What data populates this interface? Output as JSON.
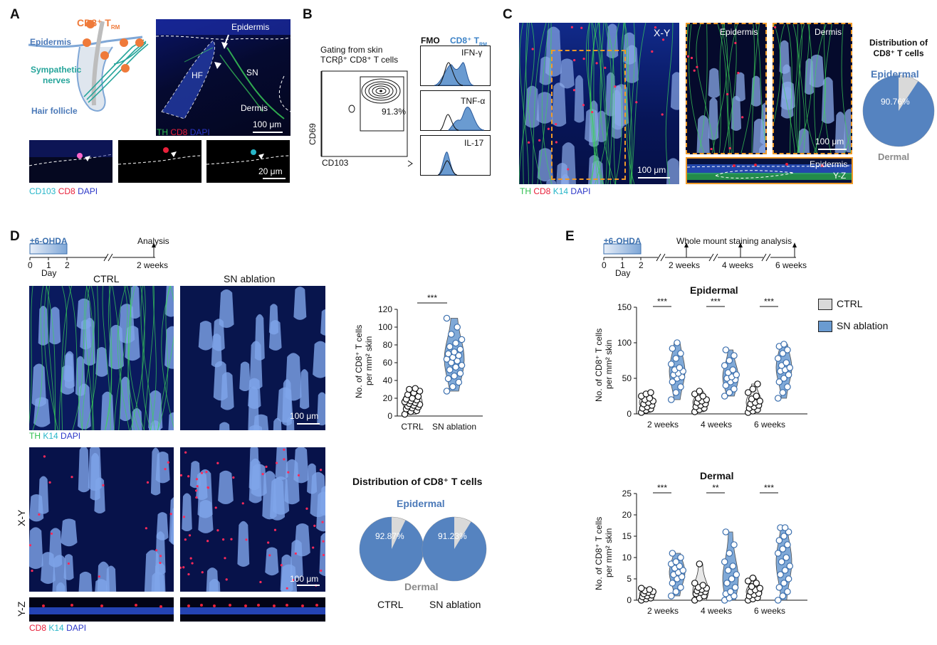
{
  "panels": {
    "A": "A",
    "B": "B",
    "C": "C",
    "D": "D",
    "E": "E"
  },
  "colors": {
    "sn_blue": "#6a9bd1",
    "ctrl_white": "#ffffff",
    "pie_blue": "#5583c0",
    "pie_grey": "#d9d9d9",
    "label_blue": "#4b79b8",
    "teal": "#27a59b",
    "orange": "#ef7a3a"
  },
  "panel_a": {
    "cd8_trm": "CD8⁺ T",
    "cd8_trm_sub": "RM",
    "epidermis": "Epidermis",
    "sympathetic": "Sympathetic",
    "nerves": "nerves",
    "hair_follicle": "Hair follicle",
    "img_epidermis": "Epidermis",
    "img_hf": "HF",
    "img_sn": "SN",
    "img_dermis": "Dermis",
    "scale_100": "100 μm",
    "stain_th": "TH",
    "stain_cd8": "CD8",
    "stain_dapi": "DAPI",
    "scale_20": "20 μm",
    "stain_cd103": "CD103"
  },
  "panel_b": {
    "gating_line1": "Gating from skin",
    "gating_line2": "TCRβ⁺ CD8⁺ T cells",
    "ylabel": "CD69",
    "xlabel": "CD103",
    "gate_pct": "91.3%",
    "fmo": "FMO",
    "cd8_trm": "CD8⁺ T",
    "cd8_trm_sub": "RM",
    "ifn": "IFN-γ",
    "tnf": "TNF-α",
    "il17": "IL-17"
  },
  "panel_c": {
    "xy": "X-Y",
    "epidermis": "Epidermis",
    "dermis": "Dermis",
    "scale_main": "100 μm",
    "scale_crop": "100 μm",
    "yz_epidermis": "Epidermis",
    "yz": "Y-Z",
    "stain_th": "TH",
    "stain_cd8": "CD8",
    "stain_k14": "K14",
    "stain_dapi": "DAPI",
    "pie_title1": "Distribution of",
    "pie_title2": "CD8⁺ T cells",
    "pie_epidermal": "Epidermal",
    "pie_pct": "90.76%",
    "pie_dermal": "Dermal"
  },
  "panel_d": {
    "treatment": "±6-OHDA",
    "analysis": "Analysis",
    "tick_0": "0",
    "tick_1": "1",
    "tick_2": "2",
    "day": "Day",
    "weeks": "2 weeks",
    "ctrl": "CTRL",
    "sn_ablation": "SN ablation",
    "scale_top": "100 μm",
    "scale_mid": "100 μm",
    "stain_top_th": "TH",
    "stain_top_k14": "K14",
    "stain_top_dapi": "DAPI",
    "xy": "X-Y",
    "yz": "Y-Z",
    "stain_bot_cd8": "CD8",
    "stain_bot_k14": "K14",
    "stain_bot_dapi": "DAPI",
    "ylabel1": "No. of CD8⁺ T cells",
    "ylabel2": "per mm² skin",
    "sig": "***",
    "xcat_ctrl": "CTRL",
    "xcat_sn": "SN ablation",
    "dist_title": "Distribution of CD8⁺ T cells",
    "dist_epidermal": "Epidermal",
    "dist_dermal": "Dermal",
    "pie_ctrl_pct": "92.87%",
    "pie_sn_pct": "91.23%",
    "pie_ctrl_label": "CTRL",
    "pie_sn_label": "SN ablation"
  },
  "panel_e": {
    "treatment": "±6-OHDA",
    "analysis": "Whole mount staining analysis",
    "tick_0": "0",
    "tick_1": "1",
    "tick_2": "2",
    "day": "Day",
    "w2": "2 weeks",
    "w4": "4 weeks",
    "w6": "6 weeks",
    "epi_title": "Epidermal",
    "derm_title": "Dermal",
    "ylabel1": "No. of CD8⁺ T cells",
    "ylabel2": "per mm² skin",
    "legend_ctrl": "CTRL",
    "legend_sn": "SN ablation"
  },
  "chart_data": [
    {
      "type": "scatter",
      "panel": "D",
      "categories": [
        "CTRL",
        "SN ablation"
      ],
      "ylabel": "No. of CD8⁺ T cells per mm² skin",
      "ylim": [
        0,
        120
      ],
      "yticks": [
        0,
        20,
        40,
        60,
        80,
        100,
        120
      ],
      "significance": "***",
      "series": [
        {
          "name": "CTRL",
          "values": [
            2,
            5,
            6,
            8,
            9,
            10,
            11,
            12,
            13,
            14,
            15,
            16,
            17,
            18,
            19,
            20,
            22,
            24,
            26,
            28,
            30,
            31
          ]
        },
        {
          "name": "SN ablation",
          "values": [
            28,
            33,
            38,
            42,
            45,
            48,
            52,
            55,
            57,
            60,
            62,
            64,
            66,
            68,
            70,
            72,
            75,
            78,
            82,
            86,
            92,
            100,
            110
          ]
        }
      ]
    },
    {
      "type": "scatter",
      "panel": "E",
      "title": "Epidermal",
      "categories": [
        "2 weeks",
        "4 weeks",
        "6 weeks"
      ],
      "ylabel": "No. of CD8⁺ T cells per mm² skin",
      "ylim": [
        0,
        150
      ],
      "yticks": [
        0,
        50,
        100,
        150
      ],
      "significance": [
        "***",
        "***",
        "***"
      ],
      "series": [
        {
          "name": "CTRL",
          "values": [
            [
              2,
              5,
              7,
              8,
              10,
              12,
              14,
              16,
              18,
              20,
              22,
              25,
              28,
              30
            ],
            [
              3,
              6,
              8,
              10,
              12,
              14,
              16,
              18,
              20,
              22,
              25,
              28,
              32
            ],
            [
              2,
              4,
              6,
              8,
              10,
              12,
              14,
              16,
              18,
              21,
              25,
              30,
              35,
              42
            ]
          ]
        },
        {
          "name": "SN ablation",
          "values": [
            [
              20,
              30,
              38,
              45,
              50,
              52,
              55,
              57,
              60,
              62,
              65,
              70,
              78,
              85,
              92,
              100
            ],
            [
              25,
              30,
              35,
              40,
              45,
              48,
              50,
              52,
              55,
              58,
              62,
              68,
              75,
              82,
              90
            ],
            [
              22,
              30,
              38,
              45,
              50,
              55,
              60,
              62,
              65,
              68,
              72,
              78,
              85,
              90,
              95,
              98
            ]
          ]
        }
      ]
    },
    {
      "type": "scatter",
      "panel": "E",
      "title": "Dermal",
      "categories": [
        "2 weeks",
        "4 weeks",
        "6 weeks"
      ],
      "ylabel": "No. of CD8⁺ T cells per mm² skin",
      "ylim": [
        0,
        25
      ],
      "yticks": [
        0,
        5,
        10,
        15,
        20,
        25
      ],
      "significance": [
        "***",
        "**",
        "***"
      ],
      "series": [
        {
          "name": "CTRL",
          "values": [
            [
              0,
              0.3,
              0.5,
              0.8,
              1,
              1.2,
              1.5,
              1.8,
              2,
              2.2,
              2.5,
              2.8
            ],
            [
              0,
              0.5,
              1,
              1.5,
              1.8,
              2,
              2.2,
              2.5,
              2.8,
              3,
              3.5,
              4,
              8.5
            ],
            [
              0,
              0.3,
              0.6,
              1,
              1.3,
              1.6,
              2,
              2.4,
              2.8,
              3.2,
              4,
              4.5,
              5.2
            ]
          ]
        },
        {
          "name": "SN ablation",
          "values": [
            [
              1,
              2,
              3,
              4,
              5,
              5.5,
              6,
              6.5,
              7,
              7.5,
              8,
              8.5,
              9,
              10,
              11
            ],
            [
              0,
              0.5,
              1,
              1.5,
              2,
              3,
              4,
              5,
              6,
              7,
              8,
              9,
              11,
              13,
              16
            ],
            [
              0,
              1,
              2,
              3,
              4,
              5,
              6,
              7,
              8,
              9,
              10,
              11,
              12,
              13,
              14,
              15,
              16,
              17,
              17
            ]
          ]
        }
      ]
    },
    {
      "type": "pie",
      "panel": "C",
      "labels": [
        "Epidermal",
        "Dermal"
      ],
      "values": [
        90.76,
        9.24
      ]
    },
    {
      "type": "pie",
      "panel": "D",
      "title": "Distribution of CD8⁺ T cells",
      "series": [
        {
          "name": "CTRL",
          "labels": [
            "Epidermal",
            "Dermal"
          ],
          "values": [
            92.87,
            7.13
          ]
        },
        {
          "name": "SN ablation",
          "labels": [
            "Epidermal",
            "Dermal"
          ],
          "values": [
            91.23,
            8.77
          ]
        }
      ]
    }
  ]
}
